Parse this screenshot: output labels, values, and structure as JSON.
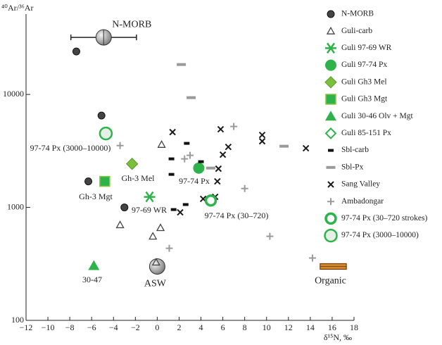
{
  "chart_data": {
    "type": "scatter",
    "x_label": "δ¹⁵N, ‰",
    "y_label": "⁴⁰Ar/³⁶Ar",
    "xlim": [
      -12,
      18
    ],
    "xticks": [
      {
        "value": -12,
        "label": "−12"
      },
      {
        "value": -10,
        "label": "−10"
      },
      {
        "value": -8,
        "label": "−8"
      },
      {
        "value": -6,
        "label": "−6"
      },
      {
        "value": -4,
        "label": "−4"
      },
      {
        "value": -2,
        "label": "−2"
      },
      0,
      2,
      4,
      6,
      8,
      10,
      12,
      14,
      16,
      18
    ],
    "ylim": [
      100,
      50000
    ],
    "yticks": [
      100,
      1000,
      10000
    ],
    "log_y": true,
    "series": [
      {
        "name": "N-MORB",
        "color": "#3a3a3a",
        "marker": "circle",
        "x": [
          -7.4,
          -5.1,
          -6.3,
          -3.0
        ],
        "y": [
          24000,
          6500,
          1700,
          1000
        ]
      },
      {
        "name": "Guli-carb",
        "color": "#444444",
        "marker": "triangle-open",
        "x": [
          0.4,
          -3.4,
          0.3,
          -0.4,
          -0.1
        ],
        "y": [
          3600,
          700,
          660,
          555,
          327
        ]
      },
      {
        "name": "Guli 97-69 WR",
        "color": "#2db34a",
        "marker": "asterisk",
        "x": [
          -0.7
        ],
        "y": [
          1240
        ]
      },
      {
        "name": "Guli 97-74 Px",
        "color": "#2db34a",
        "marker": "circle",
        "x": [
          3.8
        ],
        "y": [
          2230
        ]
      },
      {
        "name": "Guli Gh3 Mel",
        "color": "#7cbf3a",
        "marker": "diamond",
        "x": [
          -2.3
        ],
        "y": [
          2430
        ]
      },
      {
        "name": "Guli Gh3 Mgt",
        "color": "#2db34a",
        "marker": "square",
        "x": [
          -4.8
        ],
        "y": [
          1700
        ]
      },
      {
        "name": "Guli 30-46 Olv + Mgt",
        "color": "#2db34a",
        "marker": "triangle",
        "x": [
          -5.8
        ],
        "y": [
          304
        ]
      },
      {
        "name": "Guli 85-151 Px",
        "color": "#2db34a",
        "marker": "diamond-open",
        "x": [],
        "y": []
      },
      {
        "name": "Sbl-carb",
        "color": "#111111",
        "marker": "dash",
        "x": [
          2.7,
          1.3,
          1.3,
          4.0,
          1.5,
          2.6
        ],
        "y": [
          3690,
          2690,
          1960,
          2540,
          957,
          1060
        ]
      },
      {
        "name": "Sbl-Px",
        "color": "#9a9a9a",
        "marker": "dash-wide",
        "x": [
          2.2,
          3.1,
          4.9,
          11.6
        ],
        "y": [
          18400,
          9370,
          2230,
          3480
        ]
      },
      {
        "name": "Sang Valley",
        "color": "#1a1a1a",
        "marker": "x",
        "x": [
          1.4,
          5.8,
          9.6,
          9.6,
          6.5,
          6.0,
          5.6,
          13.6,
          5.5,
          4.2,
          5.3,
          2.1
        ],
        "y": [
          4640,
          4920,
          4380,
          3850,
          3430,
          2930,
          2200,
          3340,
          1700,
          1190,
          1240,
          904
        ]
      },
      {
        "name": "Ambadongar",
        "color": "#9a9a9a",
        "marker": "plus",
        "x": [
          -3.4,
          2.5,
          3.0,
          7.0,
          8.0,
          10.3,
          1.1,
          14.2
        ],
        "y": [
          3530,
          2690,
          2890,
          5210,
          1470,
          555,
          435,
          356
        ]
      },
      {
        "name": "97-74 Px (30–720 strokes)",
        "color": "#2db34a",
        "marker": "ring-thick",
        "x": [
          4.9
        ],
        "y": [
          1150
        ]
      },
      {
        "name": "97-74 Px (3000–10000)",
        "color": "#2db34a",
        "marker": "ring",
        "x": [
          -4.7
        ],
        "y": [
          4510
        ]
      }
    ],
    "references": [
      {
        "name": "N-MORB",
        "x": -4.9,
        "y": 32000,
        "xerr": 3
      },
      {
        "name": "ASW",
        "x": 0,
        "y": 300
      },
      {
        "name": "Organic",
        "x": [
          14.9,
          17.3
        ],
        "y": 300
      }
    ],
    "annotations": [
      "97-74 Px (3000–10000)",
      "Gh-3 Mel",
      "97-74 Px",
      "Gh-3 Mgt",
      "97-69 WR",
      "97-74 Px (30–720)",
      "30-47"
    ]
  }
}
